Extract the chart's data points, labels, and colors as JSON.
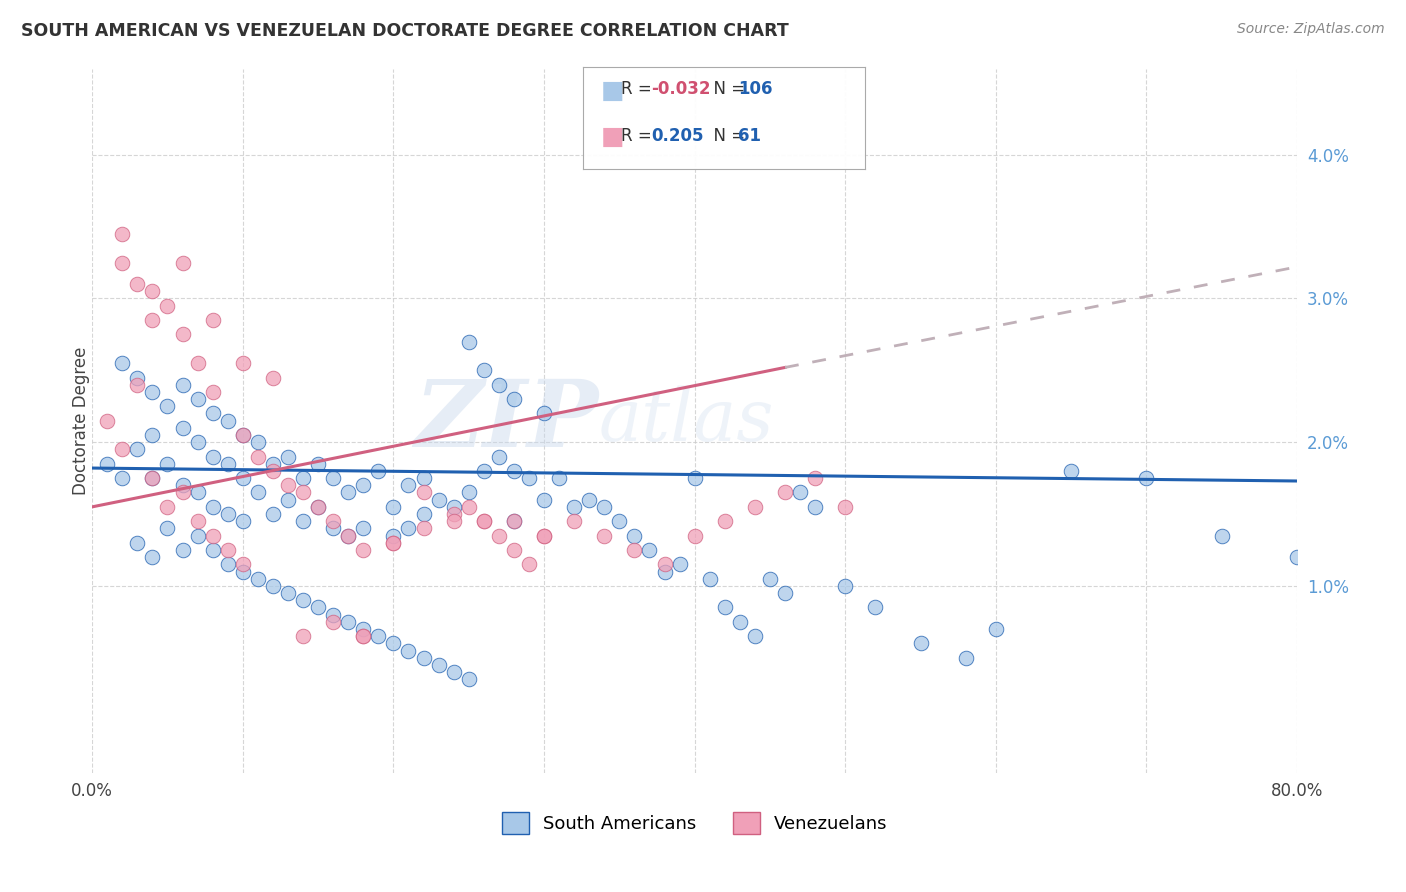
{
  "title": "SOUTH AMERICAN VS VENEZUELAN DOCTORATE DEGREE CORRELATION CHART",
  "source": "Source: ZipAtlas.com",
  "ylabel": "Doctorate Degree",
  "xlim": [
    0.0,
    80.0
  ],
  "ylim": [
    -0.3,
    4.6
  ],
  "color_blue": "#A8C8E8",
  "color_pink": "#F0A0B8",
  "line_blue": "#2060B0",
  "line_pink": "#D06080",
  "line_dashed_color": "#C0B0B8",
  "watermark_zip": "ZIP",
  "watermark_atlas": "atlas",
  "sa_x": [
    1,
    2,
    2,
    3,
    3,
    4,
    4,
    4,
    5,
    5,
    6,
    6,
    6,
    7,
    7,
    7,
    8,
    8,
    8,
    9,
    9,
    9,
    10,
    10,
    10,
    11,
    11,
    12,
    12,
    13,
    13,
    14,
    14,
    15,
    15,
    16,
    16,
    17,
    17,
    18,
    18,
    19,
    20,
    20,
    21,
    21,
    22,
    22,
    23,
    24,
    25,
    25,
    26,
    26,
    27,
    27,
    28,
    28,
    28,
    29,
    30,
    30,
    31,
    32,
    33,
    34,
    35,
    36,
    37,
    38,
    39,
    40,
    41,
    42,
    43,
    44,
    45,
    46,
    47,
    48,
    50,
    52,
    55,
    58,
    60,
    65,
    70,
    75,
    80,
    3,
    4,
    5,
    6,
    7,
    8,
    9,
    10,
    11,
    12,
    13,
    14,
    15,
    16,
    17,
    18,
    19,
    20,
    21,
    22,
    23,
    24,
    25
  ],
  "sa_y": [
    1.85,
    2.55,
    1.75,
    2.45,
    1.95,
    2.35,
    2.05,
    1.75,
    2.25,
    1.85,
    2.4,
    2.1,
    1.7,
    2.3,
    2.0,
    1.65,
    2.2,
    1.9,
    1.55,
    2.15,
    1.85,
    1.5,
    2.05,
    1.75,
    1.45,
    2.0,
    1.65,
    1.85,
    1.5,
    1.9,
    1.6,
    1.75,
    1.45,
    1.85,
    1.55,
    1.75,
    1.4,
    1.65,
    1.35,
    1.7,
    1.4,
    1.8,
    1.55,
    1.35,
    1.7,
    1.4,
    1.75,
    1.5,
    1.6,
    1.55,
    2.7,
    1.65,
    2.5,
    1.8,
    2.4,
    1.9,
    2.3,
    1.8,
    1.45,
    1.75,
    2.2,
    1.6,
    1.75,
    1.55,
    1.6,
    1.55,
    1.45,
    1.35,
    1.25,
    1.1,
    1.15,
    1.75,
    1.05,
    0.85,
    0.75,
    0.65,
    1.05,
    0.95,
    1.65,
    1.55,
    1.0,
    0.85,
    0.6,
    0.5,
    0.7,
    1.8,
    1.75,
    1.35,
    1.2,
    1.3,
    1.2,
    1.4,
    1.25,
    1.35,
    1.25,
    1.15,
    1.1,
    1.05,
    1.0,
    0.95,
    0.9,
    0.85,
    0.8,
    0.75,
    0.7,
    0.65,
    0.6,
    0.55,
    0.5,
    0.45,
    0.4,
    0.35
  ],
  "vz_x": [
    1,
    2,
    2,
    3,
    3,
    4,
    4,
    5,
    5,
    6,
    6,
    7,
    7,
    8,
    8,
    9,
    10,
    10,
    11,
    12,
    13,
    14,
    15,
    16,
    17,
    18,
    18,
    20,
    22,
    24,
    25,
    26,
    27,
    28,
    29,
    30,
    32,
    34,
    36,
    38,
    40,
    42,
    44,
    46,
    48,
    50,
    2,
    4,
    6,
    8,
    10,
    12,
    14,
    16,
    18,
    20,
    22,
    24,
    26,
    28,
    30
  ],
  "vz_y": [
    2.15,
    3.25,
    1.95,
    3.1,
    2.4,
    2.85,
    1.75,
    2.95,
    1.55,
    2.75,
    1.65,
    2.55,
    1.45,
    2.35,
    1.35,
    1.25,
    2.05,
    1.15,
    1.9,
    1.8,
    1.7,
    1.65,
    1.55,
    1.45,
    1.35,
    1.25,
    0.65,
    1.3,
    1.4,
    1.5,
    1.55,
    1.45,
    1.35,
    1.25,
    1.15,
    1.35,
    1.45,
    1.35,
    1.25,
    1.15,
    1.35,
    1.45,
    1.55,
    1.65,
    1.75,
    1.55,
    3.45,
    3.05,
    3.25,
    2.85,
    2.55,
    2.45,
    0.65,
    0.75,
    0.65,
    1.3,
    1.65,
    1.45,
    1.45,
    1.45,
    1.35
  ],
  "blue_line_x0": 0,
  "blue_line_x1": 80,
  "blue_line_y0": 1.82,
  "blue_line_y1": 1.73,
  "pink_solid_x0": 0,
  "pink_solid_x1": 46,
  "pink_solid_y0": 1.55,
  "pink_solid_y1": 2.52,
  "pink_dash_x0": 46,
  "pink_dash_x1": 80,
  "pink_dash_y0": 2.52,
  "pink_dash_y1": 3.22
}
